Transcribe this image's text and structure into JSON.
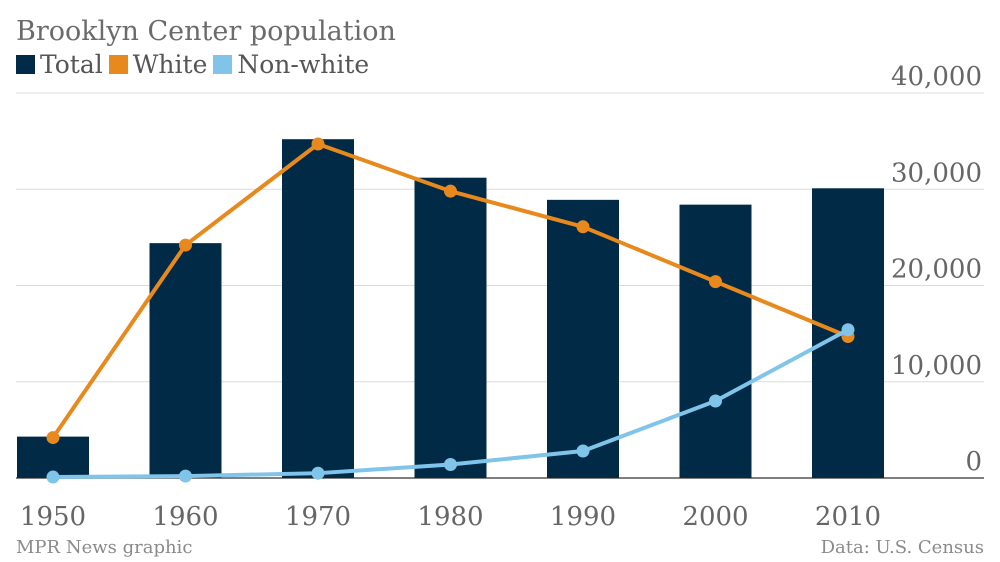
{
  "chart_data": {
    "type": "bar",
    "title": "Brooklyn Center population",
    "categories": [
      "1950",
      "1960",
      "1970",
      "1980",
      "1990",
      "2000",
      "2010"
    ],
    "series": [
      {
        "name": "Total",
        "type": "bar",
        "color": "#002a45",
        "values": [
          4300,
          24400,
          35200,
          31200,
          28900,
          28400,
          30100
        ]
      },
      {
        "name": "White",
        "type": "line",
        "color": "#e8891e",
        "values": [
          4200,
          24200,
          34700,
          29800,
          26100,
          20400,
          14700
        ]
      },
      {
        "name": "Non-white",
        "type": "line",
        "color": "#80c4ea",
        "values": [
          100,
          200,
          500,
          1400,
          2800,
          8000,
          15400
        ]
      }
    ],
    "ylim": [
      0,
      40000
    ],
    "yticks": [
      0,
      10000,
      20000,
      30000,
      40000
    ],
    "ytick_labels": [
      "0",
      "10,000",
      "20,000",
      "30,000",
      "40,000"
    ],
    "xlabel": "",
    "ylabel": "",
    "legend": [
      "Total",
      "White",
      "Non-white"
    ],
    "grid": true,
    "legend_position": "top-left"
  },
  "footer": {
    "source_left": "MPR News graphic",
    "source_right": "Data: U.S. Census"
  }
}
